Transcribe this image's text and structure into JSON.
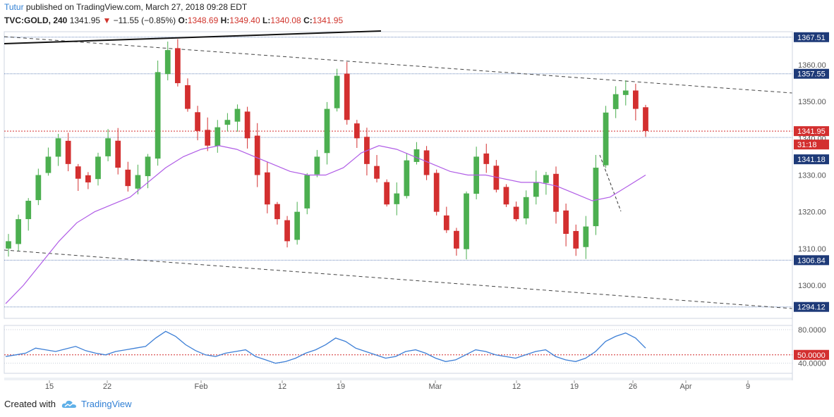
{
  "header": {
    "author": "Tutur",
    "published": "published on TradingView.com, March 27, 2018 09:28 EDT"
  },
  "symbol": {
    "name": "TVC:GOLD, 240",
    "last": "1341.95",
    "arrow": "▼",
    "change": "−11.55 (−0.85%)",
    "o_label": "O:",
    "o": "1348.69",
    "h_label": "H:",
    "h": "1349.40",
    "l_label": "L:",
    "l": "1340.08",
    "c_label": "C:",
    "c": "1341.95"
  },
  "footer": {
    "created": "Created with",
    "brand": "TradingView"
  },
  "colors": {
    "up": "#4caf50",
    "down": "#d32f2f",
    "ma": "#b05ce6",
    "rsi": "#3d7fd6",
    "levels": "#2f57a0",
    "price_badge": "#d32f2f",
    "level_badge": "#1e3a78"
  },
  "chart_data": {
    "type": "candlestick",
    "title": "",
    "x_ticks": [
      "15",
      "22",
      "Feb",
      "12",
      "19",
      "Mar",
      "12",
      "19",
      "26",
      "Apr",
      "9"
    ],
    "y_ticks": [
      "1300.00",
      "1310.00",
      "1320.00",
      "1330.00",
      "1340.00",
      "1350.00",
      "1360.00"
    ],
    "ylim": [
      1291,
      1369
    ],
    "price_lines": [
      "1367.51",
      "1357.55",
      "1306.84",
      "1294.12"
    ],
    "current_price": "1341.95",
    "countdown": "31:18",
    "prev_level": "1341.18",
    "series": [
      {
        "name": "MA",
        "values": [
          1295,
          1300,
          1306,
          1312,
          1317,
          1320,
          1322,
          1324,
          1328,
          1332,
          1335,
          1337,
          1338,
          1337,
          1335,
          1333,
          1331,
          1330,
          1330,
          1332,
          1336,
          1338,
          1337,
          1335,
          1333,
          1331,
          1330,
          1330,
          1329,
          1328,
          1328,
          1327,
          1325,
          1323,
          1324,
          1327,
          1330
        ]
      }
    ],
    "ohlc_close": [
      1312,
      1318,
      1323,
      1330,
      1335,
      1340,
      1333,
      1329,
      1328,
      1335,
      1340,
      1332,
      1327,
      1330,
      1335,
      1358,
      1364,
      1355,
      1348,
      1342,
      1338,
      1343,
      1345,
      1348,
      1340,
      1330,
      1322,
      1318,
      1312,
      1320,
      1330,
      1335,
      1348,
      1357,
      1345,
      1340,
      1333,
      1329,
      1322,
      1325,
      1334,
      1337,
      1330,
      1320,
      1315,
      1310,
      1325,
      1335,
      1333,
      1326,
      1322,
      1318,
      1324,
      1328,
      1330,
      1320,
      1314,
      1310,
      1316,
      1332,
      1347,
      1352,
      1353,
      1348,
      1342
    ],
    "rsi": {
      "ylim": [
        28,
        85
      ],
      "y_ticks": [
        "80.0000",
        "40.0000"
      ],
      "level": "50.0000",
      "values": [
        48,
        50,
        52,
        58,
        56,
        54,
        57,
        60,
        55,
        52,
        50,
        54,
        56,
        58,
        60,
        70,
        78,
        72,
        62,
        55,
        50,
        48,
        52,
        54,
        56,
        48,
        44,
        40,
        42,
        46,
        52,
        56,
        62,
        70,
        66,
        58,
        54,
        50,
        46,
        48,
        54,
        56,
        52,
        46,
        42,
        44,
        50,
        56,
        54,
        50,
        48,
        46,
        50,
        54,
        56,
        48,
        44,
        42,
        46,
        54,
        66,
        72,
        76,
        70,
        58
      ]
    }
  }
}
